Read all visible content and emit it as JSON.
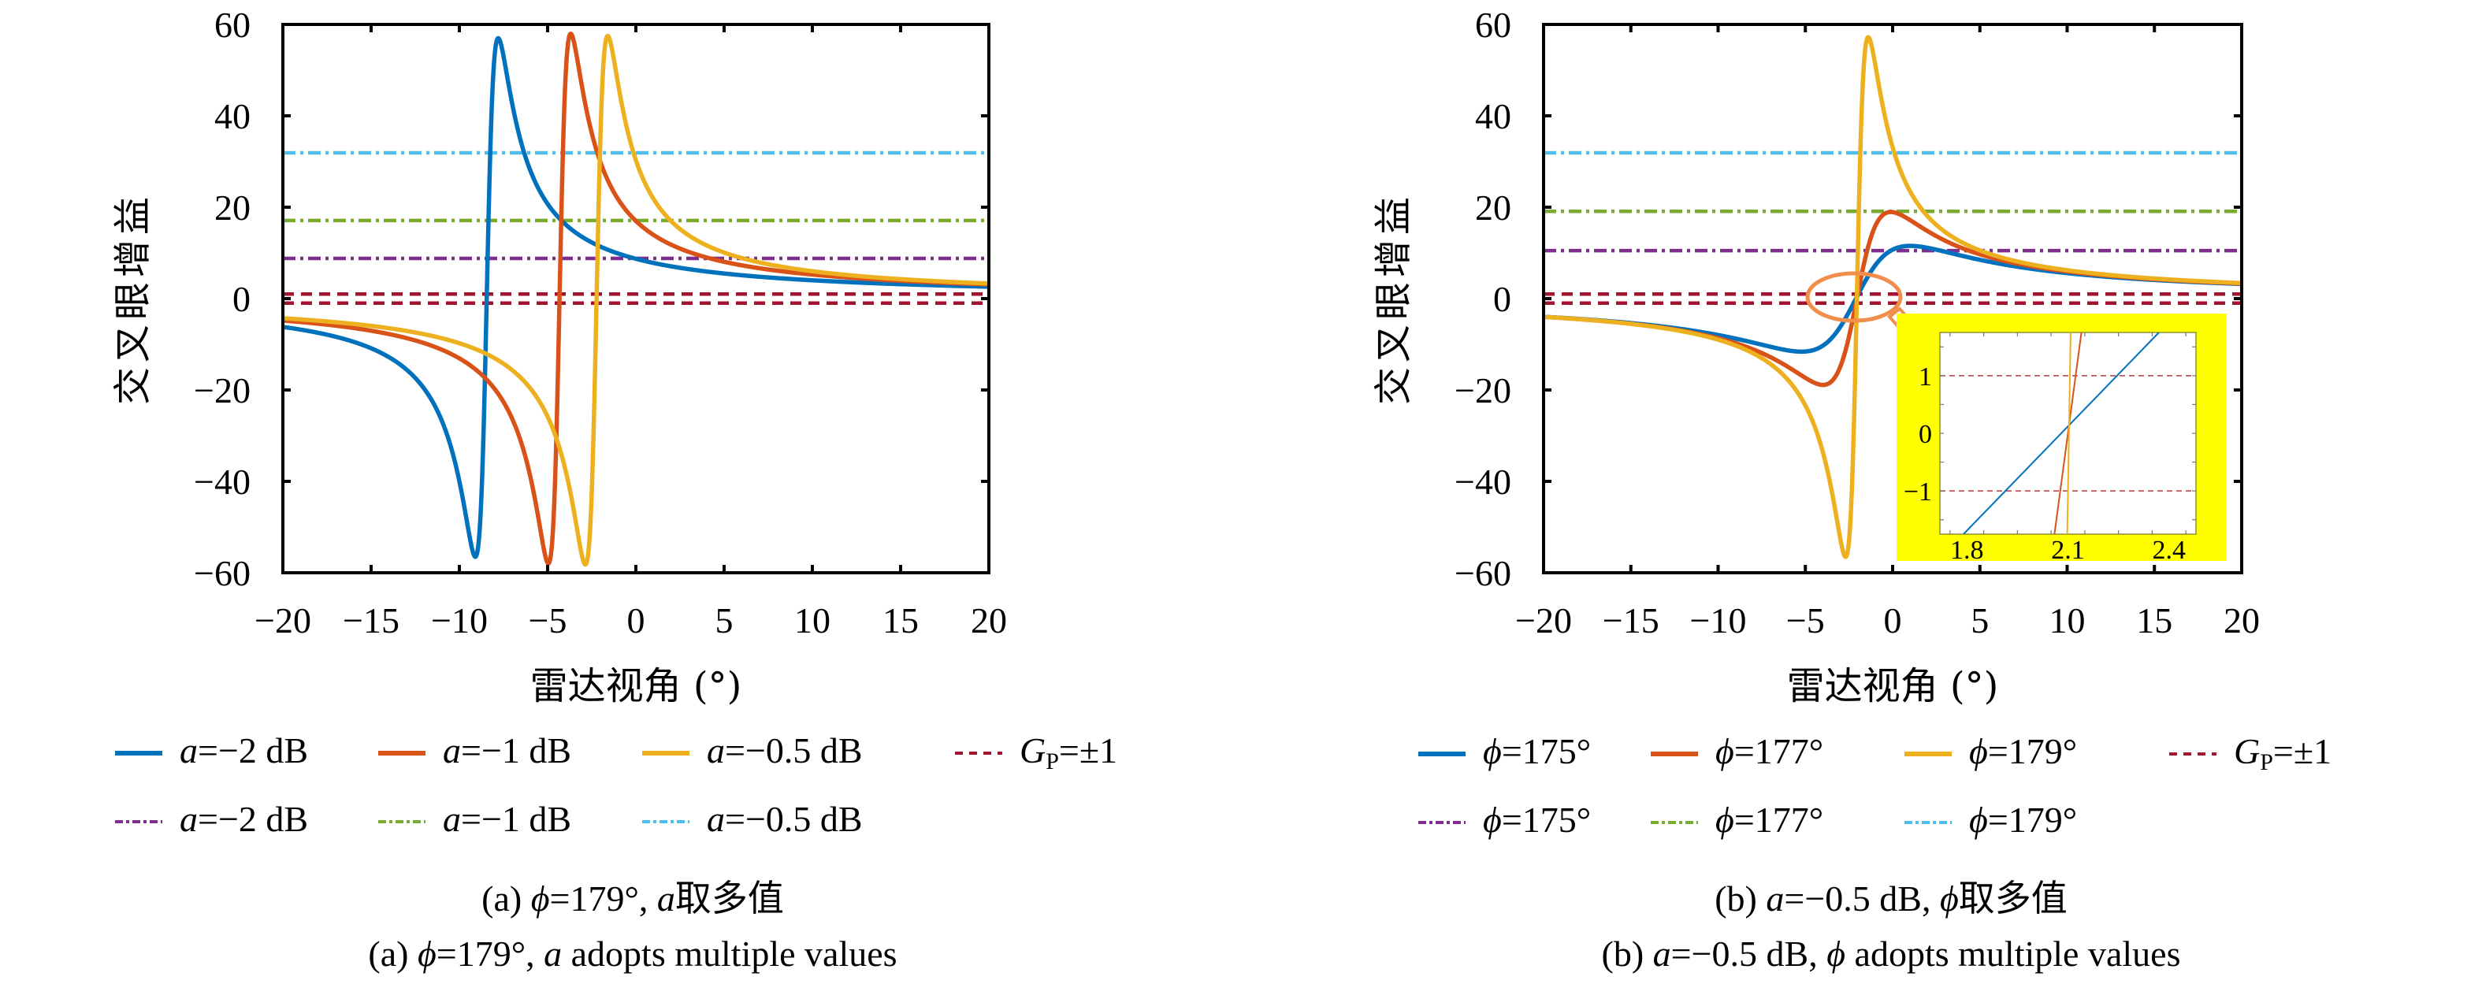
{
  "chart_data": [
    {
      "panel_id": "a",
      "type": "line",
      "xlabel": "雷达视角 (°)",
      "ylabel": "交叉眼增益",
      "xlim": [
        -20,
        20
      ],
      "ylim": [
        -60,
        60
      ],
      "xticks": [
        -20,
        -15,
        -10,
        -5,
        0,
        5,
        10,
        15,
        20
      ],
      "yticks": [
        -60,
        -40,
        -20,
        0,
        20,
        40,
        60
      ],
      "xtick_labels": [
        "−20",
        "−15",
        "−10",
        "−5",
        "0",
        "5",
        "10",
        "15",
        "20"
      ],
      "ytick_labels": [
        "−60",
        "−40",
        "−20",
        "0",
        "20",
        "40",
        "60"
      ],
      "grid": false,
      "curves": [
        {
          "name": "a=−2 dB",
          "color": "#0072BD",
          "style": "solid",
          "keypoints": {
            "trough_x": -9.1,
            "peak_x": -7.8,
            "extreme": 57,
            "left_end": -6.2,
            "right_end": 2.6
          }
        },
        {
          "name": "a=−1 dB",
          "color": "#D95319",
          "style": "solid",
          "keypoints": {
            "trough_x": -4.95,
            "peak_x": -3.7,
            "extreme": 57,
            "left_end": -4.8,
            "right_end": 3.1
          }
        },
        {
          "name": "a=−0.5 dB",
          "color": "#EDB120",
          "style": "solid",
          "keypoints": {
            "trough_x": -2.85,
            "peak_x": -1.6,
            "extreme": 57,
            "left_end": -4.3,
            "right_end": 3.3
          }
        }
      ],
      "hlines": [
        {
          "name": "a=−2 dB",
          "value": 8.8,
          "color": "#7E2F8E",
          "style": "dashdot"
        },
        {
          "name": "a=−1 dB",
          "value": 17.1,
          "color": "#77AC30",
          "style": "dashdot"
        },
        {
          "name": "a=−0.5 dB",
          "value": 31.9,
          "color": "#4DBEEE",
          "style": "dashdot"
        },
        {
          "name": "G_P=±1",
          "value": 1,
          "color": "#A2142F",
          "style": "dashed"
        },
        {
          "name": "G_P=±1",
          "value": -1,
          "color": "#A2142F",
          "style": "dashed"
        }
      ],
      "legend": {
        "placement": "bottom",
        "row1": [
          {
            "label_var": "a",
            "label_rest": "=−2 dB",
            "color": "#0072BD",
            "style": "solid"
          },
          {
            "label_var": "a",
            "label_rest": "=−1 dB",
            "color": "#D95319",
            "style": "solid"
          },
          {
            "label_var": "a",
            "label_rest": "=−0.5 dB",
            "color": "#EDB120",
            "style": "solid"
          },
          {
            "label_var": "G",
            "label_sub": "P",
            "label_rest": "=±1",
            "color": "#A2142F",
            "style": "dashed"
          }
        ],
        "row2": [
          {
            "label_var": "a",
            "label_rest": "=−2 dB",
            "color": "#7E2F8E",
            "style": "dashdot"
          },
          {
            "label_var": "a",
            "label_rest": "=−1 dB",
            "color": "#77AC30",
            "style": "dashdot"
          },
          {
            "label_var": "a",
            "label_rest": "=−0.5 dB",
            "color": "#4DBEEE",
            "style": "dashdot"
          }
        ]
      },
      "caption_cn": {
        "prefix": "(a) ",
        "var1": "ϕ",
        "mid": "=179°, ",
        "var2": "a",
        "suffix": "取多值"
      },
      "caption_en": {
        "prefix": "(a) ",
        "var1": "ϕ",
        "mid": "=179°, ",
        "var2": "a",
        "suffix": " adopts multiple values"
      }
    },
    {
      "panel_id": "b",
      "type": "line",
      "xlabel": "雷达视角 (°)",
      "ylabel": "交叉眼增益",
      "xlim": [
        -20,
        20
      ],
      "ylim": [
        -60,
        60
      ],
      "xticks": [
        -20,
        -15,
        -10,
        -5,
        0,
        5,
        10,
        15,
        20
      ],
      "yticks": [
        -60,
        -40,
        -20,
        0,
        20,
        40,
        60
      ],
      "xtick_labels": [
        "−20",
        "−15",
        "−10",
        "−5",
        "0",
        "5",
        "10",
        "15",
        "20"
      ],
      "ytick_labels": [
        "−60",
        "−40",
        "−20",
        "0",
        "20",
        "40",
        "60"
      ],
      "grid": false,
      "curves": [
        {
          "name": "ϕ=175°",
          "color": "#0072BD",
          "style": "solid",
          "keypoints": {
            "trough_x": -5.2,
            "peak_x": 1.0,
            "extreme": 11.5,
            "left_end": -4.0,
            "right_end": 3.2
          }
        },
        {
          "name": "ϕ=177°",
          "color": "#D95319",
          "style": "solid",
          "keypoints": {
            "trough_x": -4.0,
            "peak_x": -0.1,
            "extreme": 19,
            "left_end": -4.0,
            "right_end": 3.3
          }
        },
        {
          "name": "ϕ=179°",
          "color": "#EDB120",
          "style": "solid",
          "keypoints": {
            "trough_x": -2.7,
            "peak_x": -1.4,
            "extreme": 57,
            "left_end": -4.0,
            "right_end": 3.4
          }
        }
      ],
      "hlines": [
        {
          "name": "ϕ=175°",
          "value": 10.5,
          "color": "#7E2F8E",
          "style": "dashdot"
        },
        {
          "name": "ϕ=177°",
          "value": 19.1,
          "color": "#77AC30",
          "style": "dashdot"
        },
        {
          "name": "ϕ=179°",
          "value": 31.9,
          "color": "#4DBEEE",
          "style": "dashdot"
        },
        {
          "name": "G_P=±1",
          "value": 1,
          "color": "#A2142F",
          "style": "dashed"
        },
        {
          "name": "G_P=±1",
          "value": -1,
          "color": "#A2142F",
          "style": "dashed"
        }
      ],
      "inset": {
        "xlim": [
          1.72,
          2.48
        ],
        "ylim": [
          -1.75,
          1.75
        ],
        "xticks": [
          1.8,
          2.1,
          2.4
        ],
        "xtick_labels": [
          "1.8",
          "2.1",
          "2.4"
        ],
        "yticks": [
          -1,
          0,
          1
        ],
        "ytick_labels": [
          "−1",
          "0",
          "1"
        ],
        "background": "#FFFF00",
        "highlight_color": "#F28E4C",
        "lines": [
          {
            "name": "ϕ=175°",
            "color": "#0072BD",
            "x": [
              1.79,
              2.37
            ],
            "y": [
              -1.75,
              1.75
            ]
          },
          {
            "name": "ϕ=177°",
            "color": "#D95319",
            "x": [
              2.06,
              2.14
            ],
            "y": [
              -1.75,
              1.75
            ]
          },
          {
            "name": "ϕ=179°",
            "color": "#EDB120",
            "x": [
              2.098,
              2.108
            ],
            "y": [
              -1.75,
              1.75
            ]
          }
        ],
        "hlines": [
          1,
          -1
        ]
      },
      "legend": {
        "placement": "bottom",
        "row1": [
          {
            "label_var": "ϕ",
            "label_rest": "=175°",
            "color": "#0072BD",
            "style": "solid"
          },
          {
            "label_var": "ϕ",
            "label_rest": "=177°",
            "color": "#D95319",
            "style": "solid"
          },
          {
            "label_var": "ϕ",
            "label_rest": "=179°",
            "color": "#EDB120",
            "style": "solid"
          },
          {
            "label_var": "G",
            "label_sub": "P",
            "label_rest": "=±1",
            "color": "#A2142F",
            "style": "dashed"
          }
        ],
        "row2": [
          {
            "label_var": "ϕ",
            "label_rest": "=175°",
            "color": "#7E2F8E",
            "style": "dashdot"
          },
          {
            "label_var": "ϕ",
            "label_rest": "=177°",
            "color": "#77AC30",
            "style": "dashdot"
          },
          {
            "label_var": "ϕ",
            "label_rest": "=179°",
            "color": "#4DBEEE",
            "style": "dashdot"
          }
        ]
      },
      "caption_cn": {
        "prefix": "(b) ",
        "var1": "a",
        "mid": "=−0.5 dB, ",
        "var2": "ϕ",
        "suffix": "取多值"
      },
      "caption_en": {
        "prefix": "(b) ",
        "var1": "a",
        "mid": "=−0.5 dB, ",
        "var2": "ϕ",
        "suffix": " adopts multiple values"
      }
    }
  ]
}
